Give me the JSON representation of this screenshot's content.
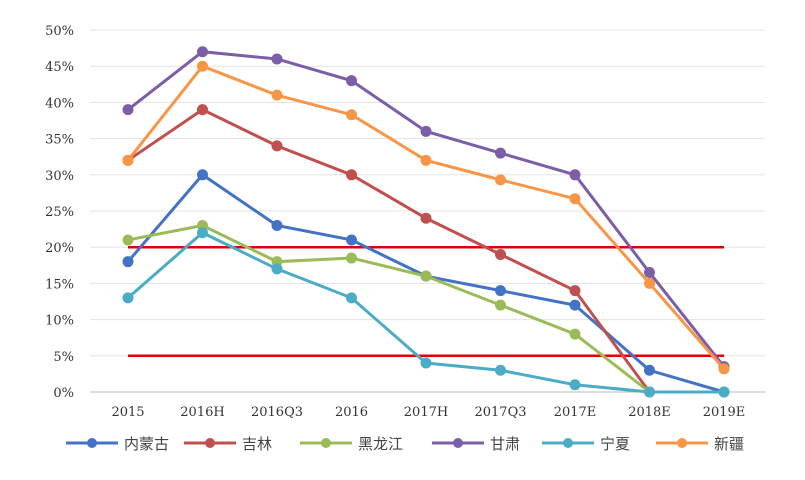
{
  "chart_data": {
    "type": "line",
    "title": "",
    "xlabel": "",
    "ylabel": "",
    "ylim": [
      0,
      50
    ],
    "yticks": [
      "0%",
      "5%",
      "10%",
      "15%",
      "20%",
      "25%",
      "30%",
      "35%",
      "40%",
      "45%",
      "50%"
    ],
    "categories": [
      "2015",
      "2016H",
      "2016Q3",
      "2016",
      "2017H",
      "2017Q3",
      "2017E",
      "2018E",
      "2019E"
    ],
    "grid": true,
    "legend_position": "bottom",
    "series": [
      {
        "name": "内蒙古",
        "color": "#4472C4",
        "values": [
          18,
          30,
          23,
          21,
          16,
          14,
          12,
          3,
          0
        ]
      },
      {
        "name": "吉林",
        "color": "#C0504D",
        "values": [
          32,
          39,
          34,
          30,
          24,
          19,
          14,
          0,
          null
        ]
      },
      {
        "name": "黑龙江",
        "color": "#9BBB59",
        "values": [
          21,
          23,
          18,
          18.5,
          16,
          12,
          8,
          0,
          null
        ]
      },
      {
        "name": "甘肃",
        "color": "#7B5EA7",
        "values": [
          39,
          47,
          46,
          43,
          36,
          33,
          30,
          16.5,
          3.5
        ]
      },
      {
        "name": "宁夏",
        "color": "#4BACC6",
        "values": [
          13,
          22,
          17,
          13,
          4,
          3,
          1,
          0,
          0
        ]
      },
      {
        "name": "新疆",
        "color": "#F79646",
        "values": [
          32,
          45,
          41,
          38.3,
          32,
          29.3,
          26.7,
          15,
          3.2
        ]
      }
    ],
    "reference_lines": [
      {
        "value": 20,
        "color": "#E00000"
      },
      {
        "value": 5,
        "color": "#E00000"
      }
    ]
  }
}
